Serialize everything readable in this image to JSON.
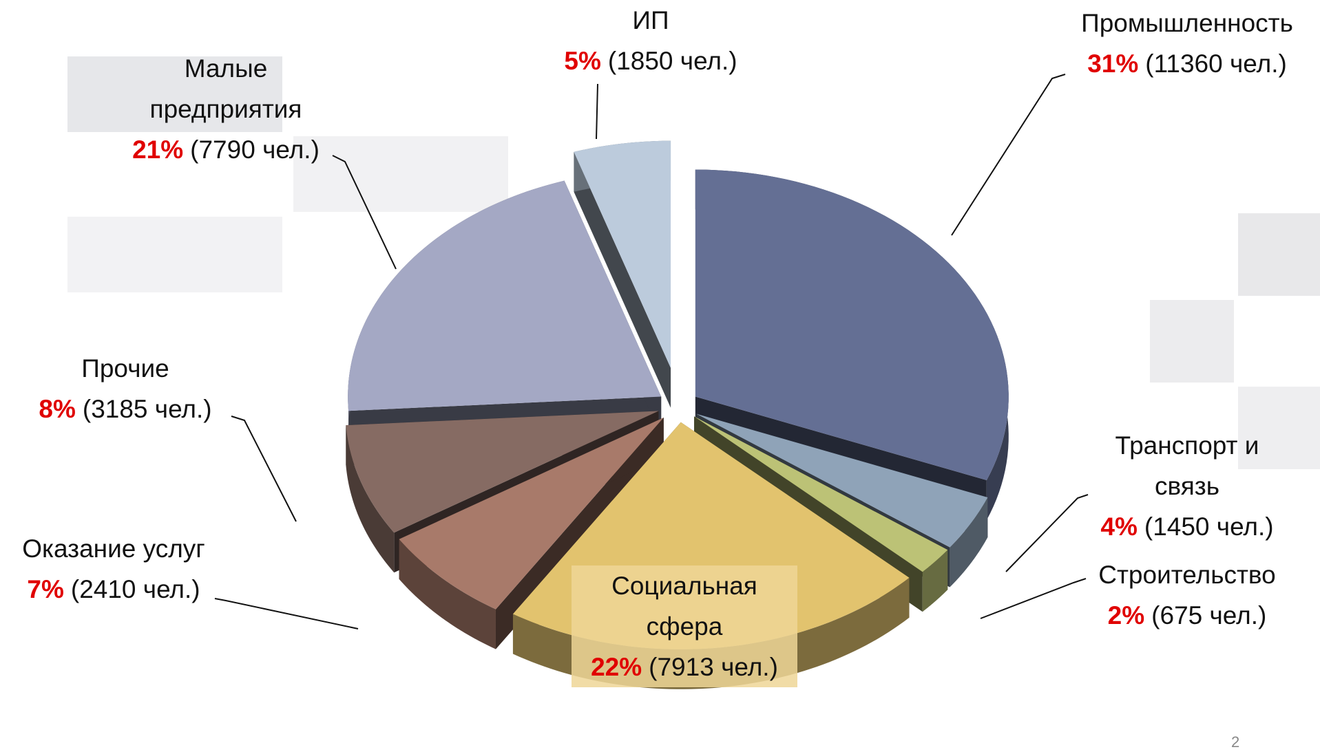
{
  "chart_data": {
    "type": "pie",
    "categories": [
      "Промышленность",
      "Транспорт и связь",
      "Строительство",
      "Социальная сфера",
      "Оказание услуг",
      "Прочие",
      "Малые предприятия",
      "ИП"
    ],
    "values": [
      31,
      4,
      2,
      22,
      7,
      8,
      21,
      5
    ],
    "value_labels": [
      "31%",
      "4%",
      "2%",
      "22%",
      "7%",
      "8%",
      "21%",
      "5%"
    ],
    "counts": [
      11360,
      1450,
      675,
      7913,
      2410,
      3185,
      7790,
      1850
    ],
    "count_labels": [
      "(11360 чел.)",
      "(1450 чел.)",
      "(675 чел.)",
      "(7913 чел.)",
      "(2410 чел.)",
      "(3185 чел.)",
      "(7790 чел.)",
      "(1850 чел.)"
    ],
    "colors": [
      "#646f94",
      "#8fa3b8",
      "#bcc276",
      "#e2c36e",
      "#a87a6a",
      "#866b63",
      "#a4a8c4",
      "#bccbdc"
    ]
  },
  "page_number": "2"
}
